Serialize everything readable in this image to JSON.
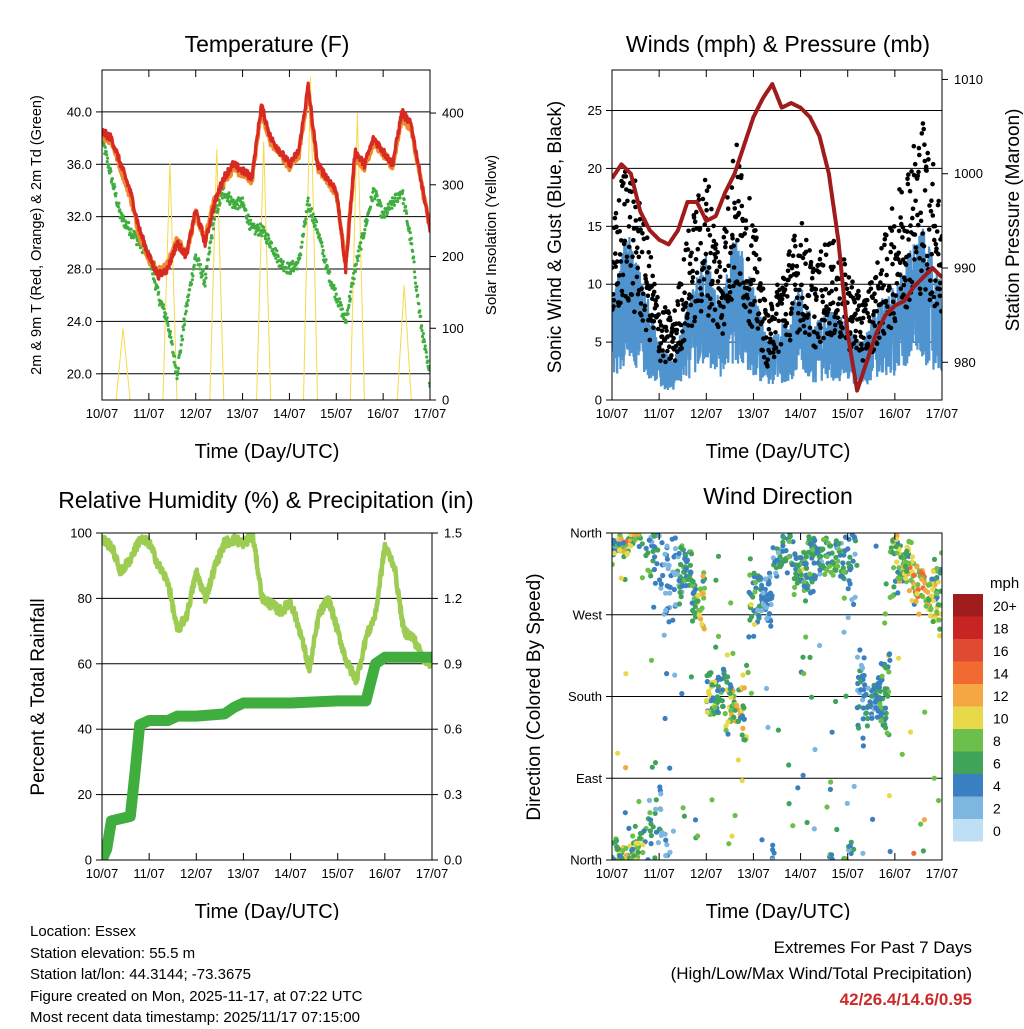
{
  "colors": {
    "temp": "#d62a22",
    "temp9m": "#f08a30",
    "dew": "#3fae3f",
    "solar": "#f7d94a",
    "wind": "#4f94cf",
    "gust": "#000000",
    "pressure": "#a01c1c",
    "rh": "#9ccc52",
    "precip": "#3fae3f",
    "extremes": "#cc2a2a"
  },
  "footer": {
    "location": "Location: Essex",
    "elevation": "Station elevation: 55.5 m",
    "latlon": "Station lat/lon: 44.3144; -73.3675",
    "created": "Figure created on Mon, 2025-11-17, at 07:22 UTC",
    "recent": "Most recent data timestamp: 2025/11/17 07:15:00",
    "extremes_title": "Extremes For Past 7 Days",
    "extremes_sub": "(High/Low/Max Wind/Total Precipitation)",
    "extremes_values": "42/26.4/14.6/0.95"
  },
  "chart_data": [
    {
      "id": "temperature",
      "type": "line",
      "title": "Temperature (F)",
      "xlabel": "Time (Day/UTC)",
      "ylabel": "2m & 9m T (Red, Orange) & 2m Td (Green)",
      "ylabel_right": "Solar Insolation (Yellow)",
      "x_ticks": [
        "10/07",
        "11/07",
        "12/07",
        "13/07",
        "14/07",
        "15/07",
        "16/07",
        "17/07"
      ],
      "xlim": [
        0,
        7
      ],
      "ylim": [
        18,
        43.2
      ],
      "y_ticks": [
        "20.0",
        "24.0",
        "28.0",
        "32.0",
        "36.0",
        "40.0"
      ],
      "y_tick_values": [
        20,
        24,
        28,
        32,
        36,
        40
      ],
      "ylim_right": [
        0,
        460
      ],
      "y_ticks_right": [
        "0",
        "100",
        "200",
        "300",
        "400"
      ],
      "y_tick_values_right": [
        0,
        100,
        200,
        300,
        400
      ],
      "series": [
        {
          "name": "2m T",
          "color": "#d62a22",
          "x": [
            0,
            0.2,
            0.4,
            0.6,
            0.8,
            1.0,
            1.2,
            1.4,
            1.6,
            1.8,
            2.0,
            2.2,
            2.4,
            2.6,
            2.8,
            3.0,
            3.2,
            3.4,
            3.6,
            3.8,
            4.0,
            4.2,
            4.4,
            4.6,
            4.8,
            5.0,
            5.2,
            5.4,
            5.6,
            5.8,
            6.0,
            6.2,
            6.4,
            6.6,
            6.8,
            7.0
          ],
          "values": [
            38.5,
            38,
            36,
            34,
            31,
            29,
            27.5,
            28,
            30,
            29,
            32.5,
            30,
            33,
            35,
            36,
            35.5,
            35,
            40.5,
            38,
            37,
            36,
            37,
            42,
            36,
            35,
            34,
            28,
            37,
            36,
            38,
            37,
            36,
            40,
            39,
            35,
            31
          ]
        },
        {
          "name": "9m T",
          "color": "#f08a30",
          "x": [
            0,
            0.2,
            0.4,
            0.6,
            0.8,
            1.0,
            1.2,
            1.4,
            1.6,
            1.8,
            2.0,
            2.2,
            2.4,
            2.6,
            2.8,
            3.0,
            3.2,
            3.4,
            3.6,
            3.8,
            4.0,
            4.2,
            4.4,
            4.6,
            4.8,
            5.0,
            5.2,
            5.4,
            5.6,
            5.8,
            6.0,
            6.2,
            6.4,
            6.6,
            6.8,
            7.0
          ],
          "values": [
            38.2,
            37.8,
            35.7,
            33.6,
            30.6,
            28.8,
            27.8,
            28.3,
            30.2,
            29.3,
            32.2,
            30.3,
            33.3,
            34.7,
            35.7,
            35.2,
            34.8,
            40.1,
            37.7,
            36.8,
            35.8,
            36.7,
            41.6,
            35.8,
            34.8,
            33.8,
            28.3,
            36.7,
            35.8,
            37.7,
            36.8,
            35.8,
            39.6,
            38.7,
            34.8,
            31.2
          ]
        },
        {
          "name": "2m Td",
          "color": "#3fae3f",
          "x": [
            0,
            0.2,
            0.4,
            0.6,
            0.8,
            1.0,
            1.2,
            1.4,
            1.6,
            1.8,
            2.0,
            2.2,
            2.4,
            2.6,
            2.8,
            3.0,
            3.2,
            3.4,
            3.6,
            3.8,
            4.0,
            4.2,
            4.4,
            4.6,
            4.8,
            5.0,
            5.2,
            5.4,
            5.6,
            5.8,
            6.0,
            6.2,
            6.4,
            6.6,
            6.8,
            7.0
          ],
          "values": [
            38,
            35,
            32,
            31,
            30,
            29,
            26,
            24,
            20,
            25,
            29,
            27,
            32,
            34,
            33,
            33,
            31,
            31,
            30,
            28.5,
            28,
            28.5,
            33,
            31,
            28,
            26,
            24,
            28,
            31,
            34,
            32,
            33,
            34,
            30,
            24,
            19.5
          ]
        },
        {
          "name": "Solar Insolation",
          "color": "#f7d94a",
          "axis": "right",
          "x": [
            0,
            0.3,
            0.45,
            0.6,
            1.0,
            1.3,
            1.45,
            1.6,
            2.0,
            2.3,
            2.45,
            2.6,
            3.0,
            3.3,
            3.45,
            3.6,
            4.0,
            4.3,
            4.45,
            4.6,
            5.0,
            5.3,
            5.45,
            5.6,
            6.0,
            6.3,
            6.45,
            6.6,
            7.0
          ],
          "values": [
            0,
            0,
            100,
            0,
            0,
            0,
            330,
            0,
            0,
            0,
            350,
            0,
            0,
            0,
            360,
            0,
            0,
            0,
            450,
            0,
            0,
            0,
            400,
            0,
            0,
            0,
            160,
            0,
            0
          ]
        }
      ]
    },
    {
      "id": "winds",
      "type": "scatter",
      "title": "Winds (mph) & Pressure (mb)",
      "xlabel": "Time (Day/UTC)",
      "ylabel": "Sonic Wind & Gust (Blue, Black)",
      "ylabel_right": "Station Pressure (Maroon)",
      "x_ticks": [
        "10/07",
        "11/07",
        "12/07",
        "13/07",
        "14/07",
        "15/07",
        "16/07",
        "17/07"
      ],
      "xlim": [
        0,
        7
      ],
      "ylim": [
        0,
        28.5
      ],
      "y_ticks": [
        "0",
        "5",
        "10",
        "15",
        "20",
        "25"
      ],
      "y_tick_values": [
        0,
        5,
        10,
        15,
        20,
        25
      ],
      "ylim_right": [
        976,
        1011
      ],
      "y_ticks_right": [
        "980",
        "990",
        "1000",
        "1010"
      ],
      "y_tick_values_right": [
        980,
        990,
        1000,
        1010
      ],
      "series": [
        {
          "name": "Sonic Wind (mean)",
          "color": "#4f94cf",
          "x": [
            0,
            0.3,
            0.6,
            1.0,
            1.3,
            1.6,
            2.0,
            2.3,
            2.6,
            3.0,
            3.3,
            3.6,
            4.0,
            4.3,
            4.6,
            5.0,
            5.3,
            5.6,
            6.0,
            6.3,
            6.6,
            7.0
          ],
          "values": [
            5,
            9,
            7,
            3,
            2,
            5,
            8,
            5,
            9,
            6,
            3,
            4,
            6,
            4,
            5,
            4,
            3,
            5,
            6,
            8,
            9,
            6
          ]
        },
        {
          "name": "Gust (mean)",
          "color": "#000000",
          "x": [
            0,
            0.3,
            0.6,
            1.0,
            1.3,
            1.6,
            2.0,
            2.3,
            2.6,
            3.0,
            3.3,
            3.6,
            4.0,
            4.3,
            4.6,
            5.0,
            5.3,
            5.6,
            6.0,
            6.3,
            6.6,
            7.0
          ],
          "values": [
            10,
            15,
            12,
            6,
            5,
            10,
            14,
            9,
            16,
            11,
            5,
            8,
            11,
            8,
            10,
            8,
            6,
            8,
            12,
            15,
            17,
            12
          ]
        },
        {
          "name": "Station Pressure",
          "color": "#a01c1c",
          "axis": "right",
          "x": [
            0,
            0.2,
            0.4,
            0.6,
            0.8,
            1.0,
            1.2,
            1.4,
            1.6,
            1.8,
            2.0,
            2.2,
            2.4,
            2.6,
            2.8,
            3.0,
            3.2,
            3.4,
            3.6,
            3.8,
            4.0,
            4.2,
            4.4,
            4.6,
            4.8,
            5.0,
            5.2,
            5.4,
            5.6,
            5.8,
            6.0,
            6.2,
            6.4,
            6.6,
            6.8,
            7.0
          ],
          "values": [
            999.5,
            1001,
            1000,
            996,
            994,
            993,
            992.5,
            994,
            997,
            997,
            995,
            995.5,
            998,
            1000,
            1003,
            1006,
            1008,
            1009.5,
            1007,
            1007.5,
            1007,
            1006,
            1004,
            1000,
            993,
            983,
            977,
            980,
            983,
            985,
            986,
            986.5,
            988,
            989,
            990,
            989
          ]
        }
      ]
    },
    {
      "id": "humidity",
      "type": "line",
      "title": "Relative Humidity (%) & Precipitation (in)",
      "xlabel": "Time (Day/UTC)",
      "ylabel": "Percent & Total Rainfall",
      "x_ticks": [
        "10/07",
        "11/07",
        "12/07",
        "13/07",
        "14/07",
        "15/07",
        "16/07",
        "17/07"
      ],
      "xlim": [
        0,
        7
      ],
      "ylim": [
        0,
        100
      ],
      "y_ticks": [
        "0",
        "20",
        "40",
        "60",
        "80",
        "100"
      ],
      "y_tick_values": [
        0,
        20,
        40,
        60,
        80,
        100
      ],
      "ylim_right": [
        0,
        1.5
      ],
      "y_ticks_right": [
        "0.0",
        "0.3",
        "0.6",
        "0.9",
        "1.2",
        "1.5"
      ],
      "y_tick_values_right": [
        0,
        0.3,
        0.6,
        0.9,
        1.2,
        1.5
      ],
      "series": [
        {
          "name": "Relative Humidity",
          "color": "#9ccc52",
          "x": [
            0,
            0.2,
            0.4,
            0.6,
            0.8,
            1.0,
            1.2,
            1.4,
            1.6,
            1.8,
            2.0,
            2.2,
            2.4,
            2.6,
            2.8,
            3.0,
            3.2,
            3.4,
            3.6,
            3.8,
            4.0,
            4.2,
            4.4,
            4.6,
            4.8,
            5.0,
            5.2,
            5.4,
            5.6,
            5.8,
            6.0,
            6.2,
            6.4,
            6.6,
            6.8,
            7.0
          ],
          "values": [
            98,
            96,
            88,
            92,
            98,
            97,
            90,
            85,
            70,
            75,
            88,
            80,
            90,
            97,
            98,
            97,
            99,
            80,
            78,
            76,
            79,
            70,
            58,
            75,
            80,
            70,
            60,
            55,
            68,
            75,
            96,
            90,
            70,
            68,
            62,
            60
          ]
        },
        {
          "name": "Total Precipitation",
          "color": "#3fae3f",
          "axis": "right",
          "x": [
            0,
            0.1,
            0.2,
            0.4,
            0.6,
            0.7,
            0.8,
            1.0,
            1.4,
            1.6,
            2.0,
            2.6,
            2.8,
            3.0,
            4.0,
            5.0,
            5.6,
            5.8,
            6.0,
            6.4,
            7.0
          ],
          "values": [
            0,
            0.05,
            0.18,
            0.19,
            0.2,
            0.4,
            0.62,
            0.64,
            0.64,
            0.66,
            0.66,
            0.67,
            0.7,
            0.72,
            0.72,
            0.73,
            0.73,
            0.9,
            0.93,
            0.93,
            0.93
          ]
        }
      ]
    },
    {
      "id": "direction",
      "type": "scatter",
      "title": "Wind Direction",
      "xlabel": "Time (Day/UTC)",
      "ylabel": "Direction (Colored By Speed)",
      "x_ticks": [
        "10/07",
        "11/07",
        "12/07",
        "13/07",
        "14/07",
        "15/07",
        "16/07",
        "17/07"
      ],
      "xlim": [
        0,
        7
      ],
      "ylim": [
        0,
        360
      ],
      "y_ticks": [
        "North",
        "East",
        "South",
        "West",
        "North"
      ],
      "y_tick_values": [
        0,
        90,
        180,
        270,
        360
      ],
      "colorbar": {
        "title": "mph",
        "labels": [
          "20+",
          "18",
          "16",
          "14",
          "12",
          "10",
          "8",
          "6",
          "4",
          "2",
          "0"
        ],
        "colors": [
          "#a01c1c",
          "#c92424",
          "#e04a32",
          "#f06a32",
          "#f4a742",
          "#e8d94a",
          "#6cbf4a",
          "#3fa35a",
          "#3a7fc0",
          "#7fb6e0",
          "#bfe0f4"
        ]
      },
      "series": [
        {
          "name": "Direction clusters (deg)",
          "x": [
            0.2,
            0.5,
            1.6,
            1.8,
            2.2,
            2.6,
            3.2,
            3.6,
            4.0,
            4.4,
            4.8,
            5.6,
            6.2,
            6.5,
            6.7
          ],
          "values": [
            355,
            5,
            320,
            285,
            180,
            170,
            290,
            340,
            320,
            330,
            335,
            180,
            325,
            305,
            290
          ]
        }
      ]
    }
  ]
}
